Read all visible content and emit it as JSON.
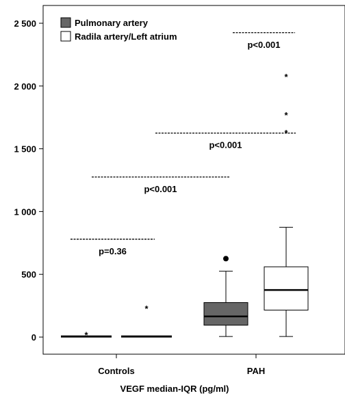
{
  "chart_data": {
    "type": "box",
    "xlabel": "VEGF median-IQR (pg/ml)",
    "ylabel": "",
    "ylim": [
      -100,
      2560
    ],
    "yticks": [
      {
        "value": 0,
        "label": "0"
      },
      {
        "value": 500,
        "label": "500"
      },
      {
        "value": 1000,
        "label": "1 000"
      },
      {
        "value": 1500,
        "label": "1 500"
      },
      {
        "value": 2000,
        "label": "2 000"
      },
      {
        "value": 2500,
        "label": "2 500"
      }
    ],
    "categories": [
      "Controls",
      "PAH"
    ],
    "legend": {
      "position": "top-left",
      "entries": [
        {
          "name": "Pulmonary artery",
          "color": "#666666"
        },
        {
          "name": "Radila artery/Left atrium",
          "color": "#ffffff"
        }
      ]
    },
    "series": [
      {
        "name": "Pulmonary artery",
        "color": "#666666",
        "boxes": [
          {
            "category": "Controls",
            "min": 5,
            "q1": 5,
            "median": 5,
            "q3": 5,
            "max": 5,
            "extremes": [
              25
            ],
            "outliers": []
          },
          {
            "category": "PAH",
            "min": 5,
            "q1": 95,
            "median": 165,
            "q3": 275,
            "max": 525,
            "extremes": [],
            "outliers": [
              625
            ]
          }
        ]
      },
      {
        "name": "Radila artery/Left atrium",
        "color": "#ffffff",
        "boxes": [
          {
            "category": "Controls",
            "min": 5,
            "q1": 5,
            "median": 5,
            "q3": 5,
            "max": 5,
            "extremes": [
              235
            ],
            "outliers": []
          },
          {
            "category": "PAH",
            "min": 5,
            "q1": 215,
            "median": 375,
            "q3": 560,
            "max": 875,
            "extremes": [
              1635,
              1775,
              2080
            ],
            "outliers": []
          }
        ]
      }
    ],
    "annotations": [
      {
        "text": "p=0.36",
        "y": 780,
        "from": "Controls",
        "to": "Controls"
      },
      {
        "text": "p<0.001",
        "y": 1275,
        "from": "Controls",
        "to": "PAH"
      },
      {
        "text": "p<0.001",
        "y": 1625,
        "from": "PAH",
        "to": "PAH"
      },
      {
        "text": "p<0.001",
        "y": 2425,
        "from": "PAH",
        "to": "PAH"
      }
    ]
  }
}
